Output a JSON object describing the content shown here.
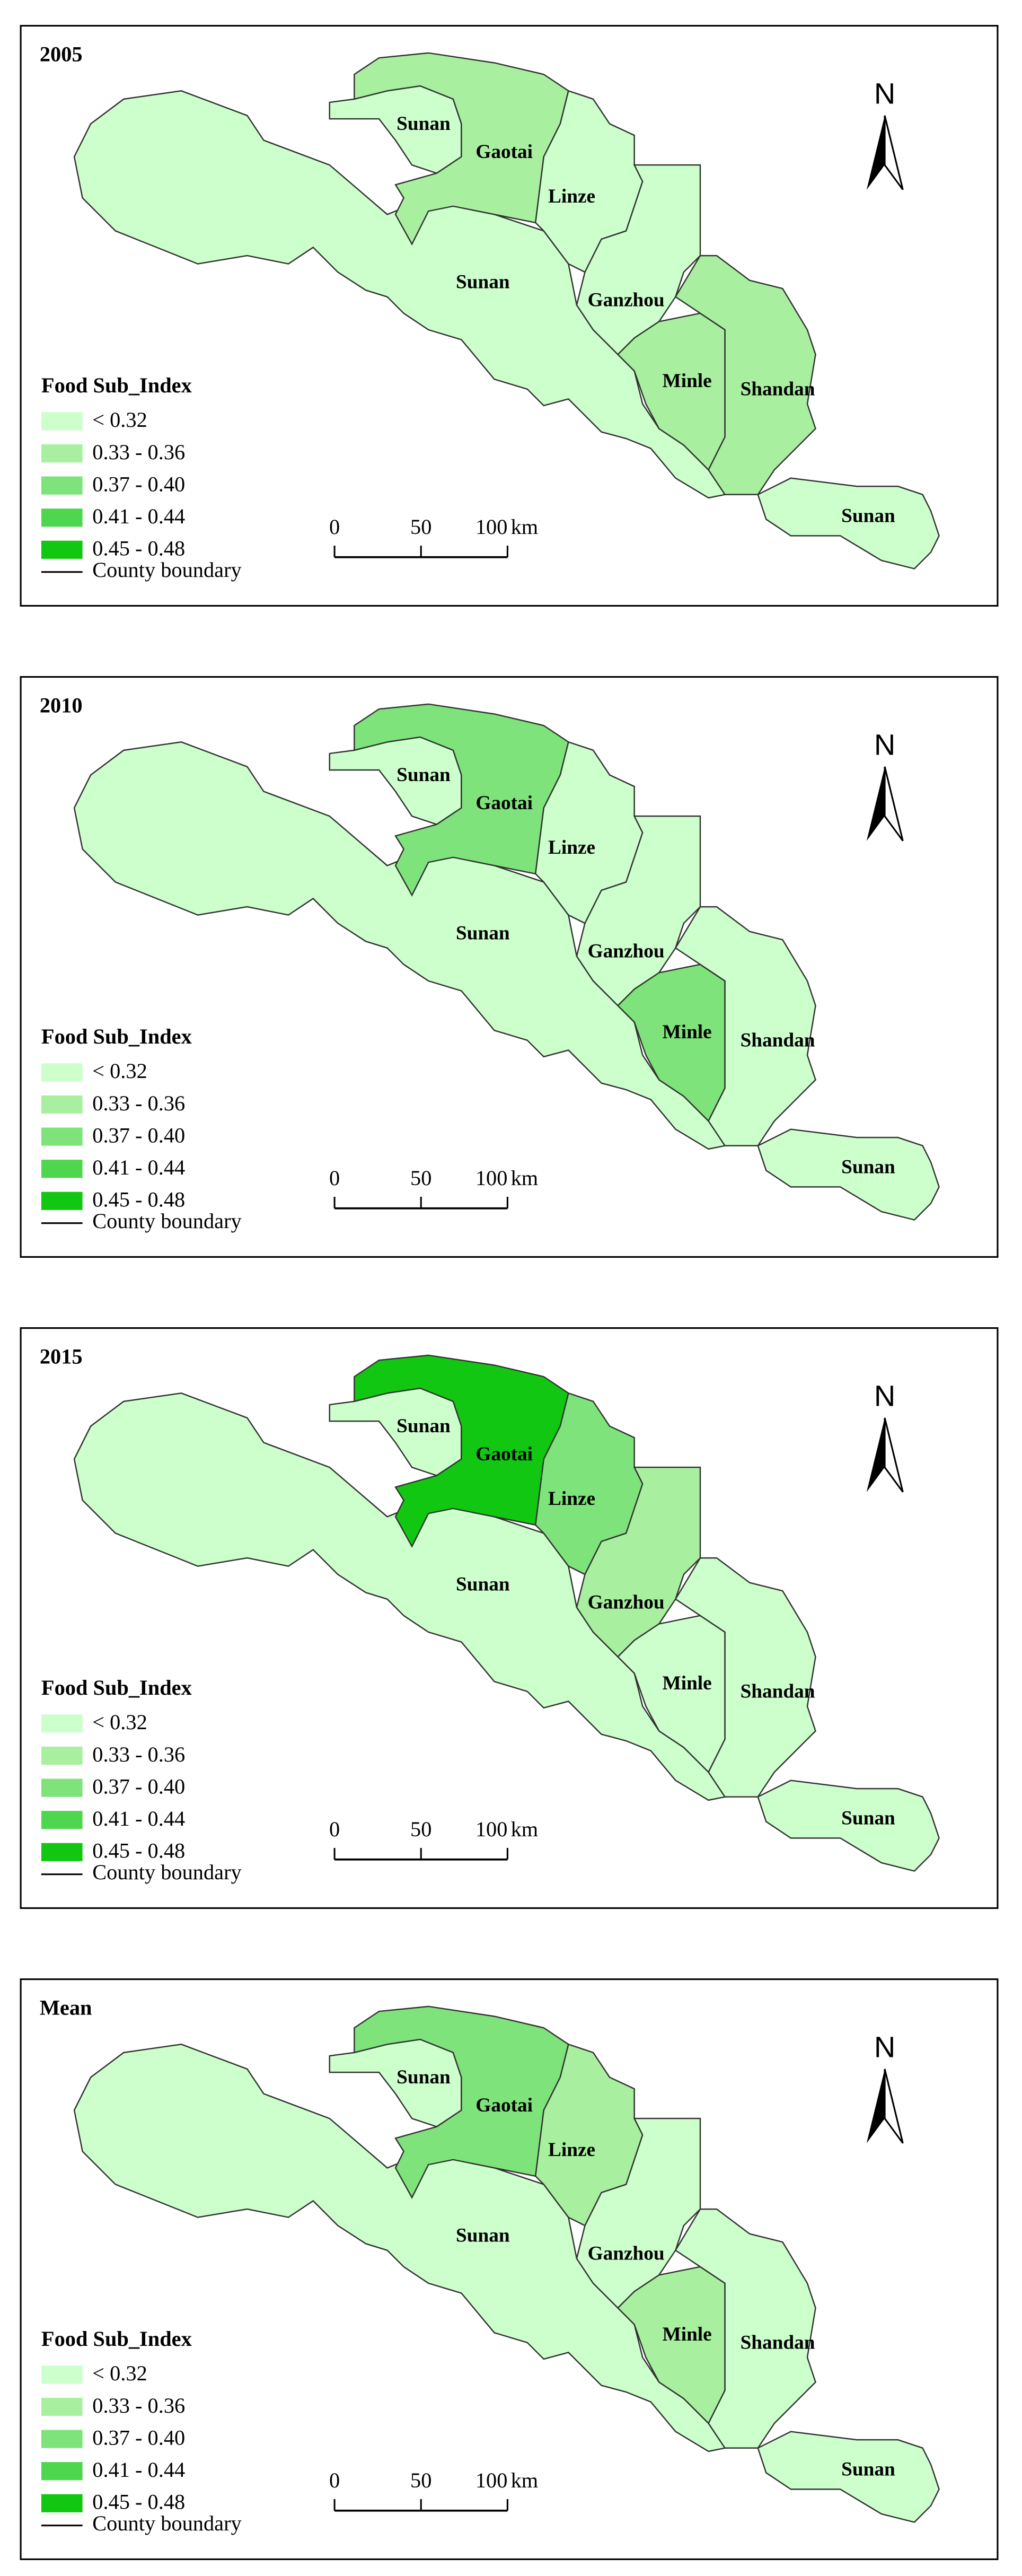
{
  "legend": {
    "title": "Food Sub_Index",
    "items": [
      {
        "label": "< 0.32",
        "color": "#ccffcc"
      },
      {
        "label": "0.33 - 0.36",
        "color": "#a8f0a0"
      },
      {
        "label": "0.37 - 0.40",
        "color": "#7ee37a"
      },
      {
        "label": "0.41 - 0.44",
        "color": "#4ed64e"
      },
      {
        "label": "0.45 - 0.48",
        "color": "#11c711"
      }
    ],
    "boundary": "County boundary"
  },
  "north": "N",
  "scale_bar": {
    "ticks": [
      0,
      50,
      100
    ],
    "unit": "km"
  },
  "panels": [
    {
      "title": "2005",
      "regions": [
        {
          "label": "Sunan",
          "color": "#ccffcc"
        },
        {
          "label": "Sunan",
          "color": "#ccffcc"
        },
        {
          "label": "Gaotai",
          "color": "#a8f0a0"
        },
        {
          "label": "Linze",
          "color": "#ccffcc"
        },
        {
          "label": "Ganzhou",
          "color": "#ccffcc"
        },
        {
          "label": "Minle",
          "color": "#a8f0a0"
        },
        {
          "label": "Shandan",
          "color": "#a8f0a0"
        },
        {
          "label": "Sunan",
          "color": "#ccffcc"
        }
      ]
    },
    {
      "title": "2010",
      "regions": [
        {
          "label": "Sunan",
          "color": "#ccffcc"
        },
        {
          "label": "Sunan",
          "color": "#ccffcc"
        },
        {
          "label": "Gaotai",
          "color": "#7ee37a"
        },
        {
          "label": "Linze",
          "color": "#ccffcc"
        },
        {
          "label": "Ganzhou",
          "color": "#ccffcc"
        },
        {
          "label": "Minle",
          "color": "#7ee37a"
        },
        {
          "label": "Shandan",
          "color": "#ccffcc"
        },
        {
          "label": "Sunan",
          "color": "#ccffcc"
        }
      ]
    },
    {
      "title": "2015",
      "regions": [
        {
          "label": "Sunan",
          "color": "#ccffcc"
        },
        {
          "label": "Sunan",
          "color": "#ccffcc"
        },
        {
          "label": "Gaotai",
          "color": "#11c711"
        },
        {
          "label": "Linze",
          "color": "#7ee37a"
        },
        {
          "label": "Ganzhou",
          "color": "#a8f0a0"
        },
        {
          "label": "Minle",
          "color": "#ccffcc"
        },
        {
          "label": "Shandan",
          "color": "#ccffcc"
        },
        {
          "label": "Sunan",
          "color": "#ccffcc"
        }
      ]
    },
    {
      "title": "Mean",
      "regions": [
        {
          "label": "Sunan",
          "color": "#ccffcc"
        },
        {
          "label": "Sunan",
          "color": "#ccffcc"
        },
        {
          "label": "Gaotai",
          "color": "#7ee37a"
        },
        {
          "label": "Linze",
          "color": "#a8f0a0"
        },
        {
          "label": "Ganzhou",
          "color": "#ccffcc"
        },
        {
          "label": "Minle",
          "color": "#a8f0a0"
        },
        {
          "label": "Shandan",
          "color": "#ccffcc"
        },
        {
          "label": "Sunan",
          "color": "#ccffcc"
        }
      ]
    }
  ]
}
